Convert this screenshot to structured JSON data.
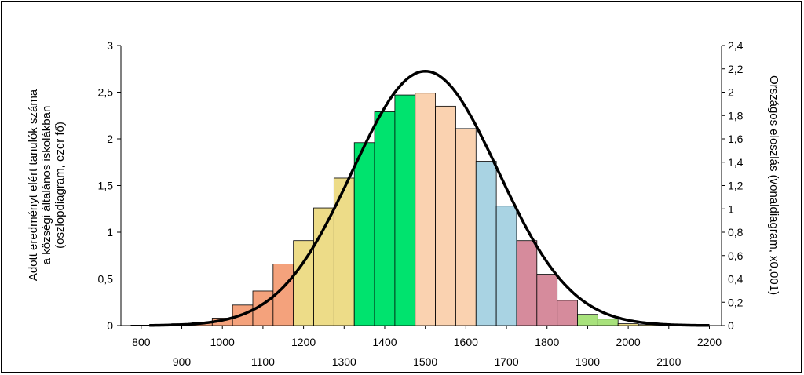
{
  "chart_data": {
    "type": "bar",
    "left_axis": {
      "range": [
        0,
        3
      ],
      "ticks": [
        "0",
        "0,5",
        "1",
        "1,5",
        "2",
        "2,5",
        "3"
      ],
      "label_lines": [
        "Adott eredményt elért tanulók száma",
        "a községi általános iskolákban",
        "(oszlopdiagram, ezer fő)"
      ]
    },
    "right_axis": {
      "range": [
        0,
        2.4
      ],
      "ticks": [
        "0",
        "0,2",
        "0,4",
        "0,6",
        "0,8",
        "1",
        "1,2",
        "1,4",
        "1,6",
        "1,8",
        "2",
        "2,2",
        "2,4"
      ],
      "label": "Országos eloszlás (vonaldiagram, x0,001)"
    },
    "x_axis": {
      "range": [
        750,
        2230
      ],
      "ticks_upper": [
        "800",
        "1000",
        "1200",
        "1400",
        "1600",
        "1800",
        "2000",
        "2200"
      ],
      "ticks_lower": [
        "900",
        "1100",
        "1300",
        "1500",
        "1700",
        "1900",
        "2100"
      ]
    },
    "bin_width": 50,
    "bars": [
      {
        "x": 800,
        "y": 0.005,
        "color": "#F4A27C"
      },
      {
        "x": 850,
        "y": 0.01,
        "color": "#F4A27C"
      },
      {
        "x": 900,
        "y": 0.02,
        "color": "#F4A27C"
      },
      {
        "x": 950,
        "y": 0.03,
        "color": "#F4A27C"
      },
      {
        "x": 1000,
        "y": 0.08,
        "color": "#F4A27C"
      },
      {
        "x": 1050,
        "y": 0.22,
        "color": "#F4A27C"
      },
      {
        "x": 1100,
        "y": 0.37,
        "color": "#F4A27C"
      },
      {
        "x": 1150,
        "y": 0.66,
        "color": "#F4A27C"
      },
      {
        "x": 1200,
        "y": 0.91,
        "color": "#EDDC88"
      },
      {
        "x": 1250,
        "y": 1.26,
        "color": "#EDDC88"
      },
      {
        "x": 1300,
        "y": 1.58,
        "color": "#EDDC88"
      },
      {
        "x": 1350,
        "y": 1.96,
        "color": "#00E36E"
      },
      {
        "x": 1400,
        "y": 2.29,
        "color": "#00E36E"
      },
      {
        "x": 1450,
        "y": 2.47,
        "color": "#00E36E"
      },
      {
        "x": 1500,
        "y": 2.49,
        "color": "#FAD2B0"
      },
      {
        "x": 1550,
        "y": 2.35,
        "color": "#FAD2B0"
      },
      {
        "x": 1600,
        "y": 2.11,
        "color": "#FAD2B0"
      },
      {
        "x": 1650,
        "y": 1.76,
        "color": "#A9D3E3"
      },
      {
        "x": 1700,
        "y": 1.28,
        "color": "#A9D3E3"
      },
      {
        "x": 1750,
        "y": 0.91,
        "color": "#D68B9C"
      },
      {
        "x": 1800,
        "y": 0.55,
        "color": "#D68B9C"
      },
      {
        "x": 1850,
        "y": 0.27,
        "color": "#D68B9C"
      },
      {
        "x": 1900,
        "y": 0.12,
        "color": "#A8E27C"
      },
      {
        "x": 1950,
        "y": 0.07,
        "color": "#A8E27C"
      },
      {
        "x": 2000,
        "y": 0.02,
        "color": "#EDDC88"
      },
      {
        "x": 2050,
        "y": 0.01,
        "color": "#EDDC88"
      },
      {
        "x": 2100,
        "y": 0.005,
        "color": "#EDDC88"
      },
      {
        "x": 2150,
        "y": 0.005,
        "color": "#EDDC88"
      }
    ],
    "curve": {
      "description_free_params": true,
      "mean": 1500,
      "sd": 180,
      "peak": 2.18,
      "color": "#000000"
    }
  }
}
